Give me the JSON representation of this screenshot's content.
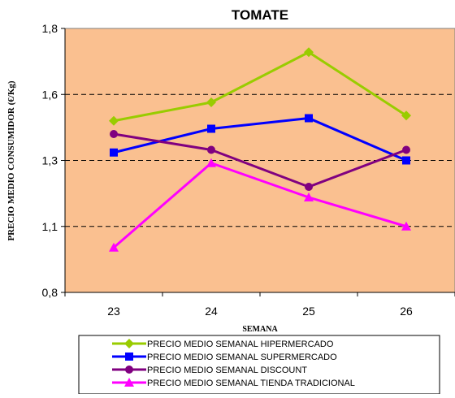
{
  "chart_data": {
    "type": "line",
    "title": "TOMATE",
    "xlabel": "SEMANA",
    "ylabel": "PRECIO MEDIO CONSUMIDOR (€/Kg)",
    "categories": [
      "23",
      "24",
      "25",
      "26"
    ],
    "ylim": [
      0.8,
      1.8
    ],
    "yticks": [
      0.8,
      1.05,
      1.3,
      1.55,
      1.8
    ],
    "ytick_labels": [
      "0,8",
      "1,1",
      "1,3",
      "1,6",
      "1,8"
    ],
    "grid": "dashed horizontal",
    "plot_background": "#fac090",
    "legend_position": "bottom",
    "series": [
      {
        "name": "PRECIO MEDIO SEMANAL HIPERMERCADO",
        "values": [
          1.45,
          1.52,
          1.71,
          1.47
        ],
        "color": "#99cc00",
        "marker": "diamond"
      },
      {
        "name": "PRECIO MEDIO SEMANAL SUPERMERCADO",
        "values": [
          1.33,
          1.42,
          1.46,
          1.3
        ],
        "color": "#0000ff",
        "marker": "square"
      },
      {
        "name": "PRECIO MEDIO SEMANAL DISCOUNT",
        "values": [
          1.4,
          1.34,
          1.2,
          1.34
        ],
        "color": "#800080",
        "marker": "circle"
      },
      {
        "name": "PRECIO MEDIO SEMANAL TIENDA TRADICIONAL",
        "values": [
          0.97,
          1.29,
          1.16,
          1.05
        ],
        "color": "#ff00ff",
        "marker": "triangle"
      }
    ]
  }
}
